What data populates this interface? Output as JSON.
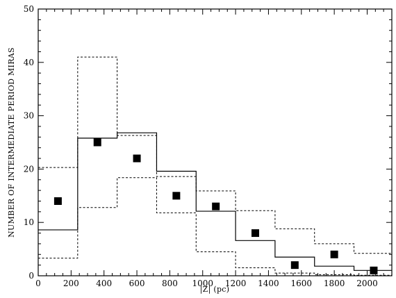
{
  "chart_data": {
    "type": "step-histogram-with-points",
    "xlabel": "|Z| (pc)",
    "ylabel": "NUMBER OF INTERMEDIATE PERIOD MIRAS",
    "xlim": [
      0,
      2150
    ],
    "ylim": [
      0,
      50
    ],
    "x_ticks": [
      0,
      200,
      400,
      600,
      800,
      1000,
      1200,
      1400,
      1600,
      1800,
      2000
    ],
    "y_ticks": [
      0,
      10,
      20,
      30,
      40,
      50
    ],
    "grid": false,
    "bin_edges": [
      0,
      240,
      480,
      720,
      960,
      1200,
      1440,
      1680,
      1920,
      2150
    ],
    "series": [
      {
        "style": "solid-step",
        "values": [
          8.6,
          25.8,
          26.8,
          19.6,
          12.1,
          6.6,
          3.5,
          1.8,
          1.0
        ]
      },
      {
        "style": "dashed-step-upper",
        "values": [
          20.3,
          41.0,
          26.3,
          18.6,
          15.9,
          12.2,
          8.8,
          6.0,
          4.2
        ]
      },
      {
        "style": "dashed-step-lower",
        "values": [
          3.3,
          12.8,
          18.4,
          11.8,
          4.5,
          1.5,
          0.5,
          0.2,
          0.1
        ]
      }
    ],
    "points": {
      "marker": "filled-square",
      "x": [
        120,
        360,
        600,
        840,
        1080,
        1320,
        1560,
        1800,
        2040
      ],
      "y": [
        14.0,
        25.0,
        22.0,
        15.0,
        13.0,
        8.0,
        2.0,
        4.0,
        1.0
      ]
    }
  }
}
